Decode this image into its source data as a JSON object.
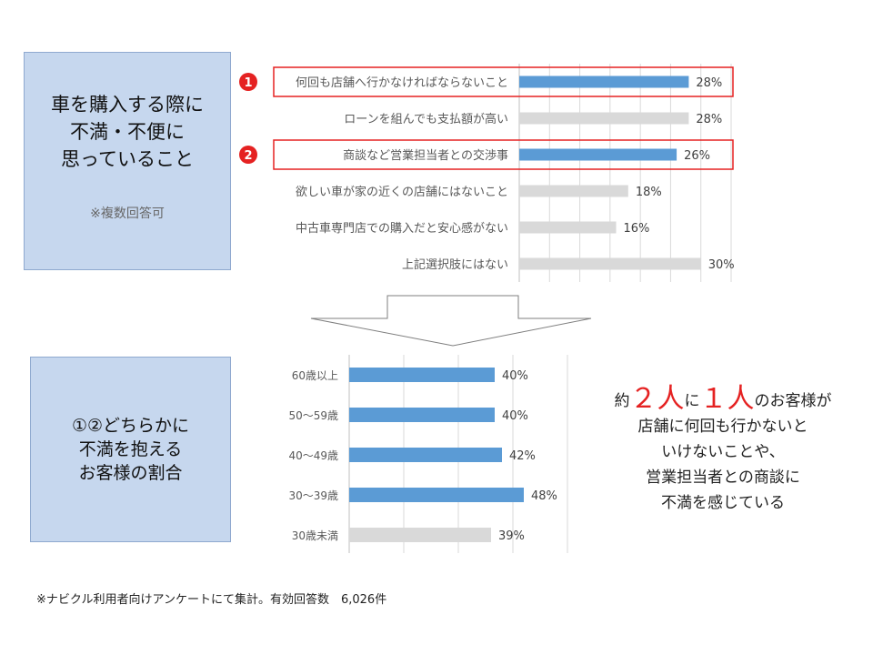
{
  "left_box_1": {
    "title_lines": [
      "車を購入する際に",
      "不満・不便に",
      "思っていること"
    ],
    "note": "※複数回答可"
  },
  "left_box_2": {
    "title_lines": [
      "①②どちらかに",
      "不満を抱える",
      "お客様の割合"
    ]
  },
  "colors": {
    "highlight": "#5b9bd5",
    "normal": "#d9d9d9",
    "marker": "#e52222"
  },
  "chart_data": [
    {
      "type": "bar",
      "orientation": "horizontal",
      "categories": [
        "何回も店舗へ行かなければならないこと",
        "ローンを組んでも支払額が高い",
        "商談など営業担当者との交渉事",
        "欲しい車が家の近くの店舗にはないこと",
        "中古車専門店での購入だと安心感がない",
        "上記選択肢にはない"
      ],
      "values": [
        28,
        28,
        26,
        18,
        16,
        30
      ],
      "value_labels": [
        "28%",
        "28%",
        "26%",
        "18%",
        "16%",
        "30%"
      ],
      "highlighted": [
        true,
        false,
        true,
        false,
        false,
        false
      ],
      "markers": [
        {
          "index": 0,
          "label": "1"
        },
        {
          "index": 2,
          "label": "2"
        }
      ],
      "xlim": [
        0,
        35
      ],
      "grid": true
    },
    {
      "type": "bar",
      "orientation": "horizontal",
      "categories": [
        "60歳以上",
        "50～59歳",
        "40～49歳",
        "30～39歳",
        "30歳未満"
      ],
      "values": [
        40,
        40,
        42,
        48,
        39
      ],
      "value_labels": [
        "40%",
        "40%",
        "42%",
        "48%",
        "39%"
      ],
      "highlighted": [
        true,
        true,
        true,
        true,
        false
      ],
      "xlim": [
        0,
        60
      ],
      "grid": true
    }
  ],
  "summary": {
    "line1": {
      "pre": "約",
      "big1": "２人",
      "mid": "に",
      "big2": "１人",
      "post": "のお客様が"
    },
    "lines": [
      "店舗に何回も行かないと",
      "いけないことや、",
      "営業担当者との商談に",
      "不満を感じている"
    ]
  },
  "footnote": "※ナビクル利用者向けアンケートにて集計。有効回答数　6,026件"
}
